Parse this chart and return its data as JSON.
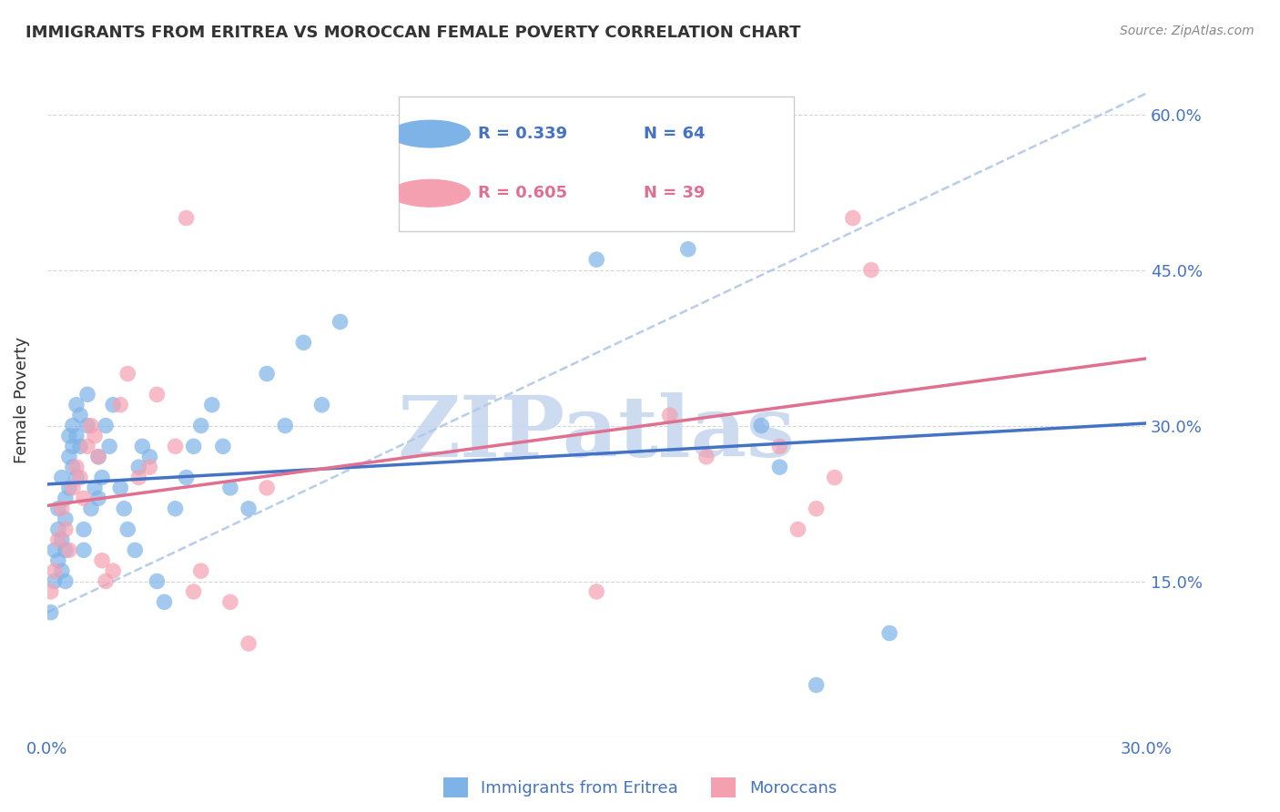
{
  "title": "IMMIGRANTS FROM ERITREA VS MOROCCAN FEMALE POVERTY CORRELATION CHART",
  "source": "Source: ZipAtlas.com",
  "xlim": [
    0.0,
    0.3
  ],
  "ylim": [
    0.0,
    0.65
  ],
  "legend_label1": "Immigrants from Eritrea",
  "legend_label2": "Moroccans",
  "R1": 0.339,
  "N1": 64,
  "R2": 0.605,
  "N2": 39,
  "color_blue": "#7EB3E8",
  "color_pink": "#F4A0B0",
  "color_blue_line": "#4472C4",
  "color_pink_line": "#E07090",
  "color_dashed": "#B0C8E8",
  "watermark": "ZIPatlas",
  "watermark_color": "#C8D8F0",
  "blue_points_x": [
    0.001,
    0.002,
    0.002,
    0.003,
    0.003,
    0.003,
    0.004,
    0.004,
    0.004,
    0.005,
    0.005,
    0.005,
    0.005,
    0.006,
    0.006,
    0.006,
    0.007,
    0.007,
    0.007,
    0.008,
    0.008,
    0.008,
    0.009,
    0.009,
    0.01,
    0.01,
    0.011,
    0.011,
    0.012,
    0.013,
    0.014,
    0.014,
    0.015,
    0.016,
    0.017,
    0.018,
    0.02,
    0.021,
    0.022,
    0.024,
    0.025,
    0.026,
    0.028,
    0.03,
    0.032,
    0.035,
    0.038,
    0.04,
    0.042,
    0.045,
    0.048,
    0.05,
    0.055,
    0.06,
    0.065,
    0.07,
    0.075,
    0.08,
    0.15,
    0.175,
    0.195,
    0.2,
    0.21,
    0.23
  ],
  "blue_points_y": [
    0.12,
    0.15,
    0.18,
    0.2,
    0.22,
    0.17,
    0.25,
    0.19,
    0.16,
    0.23,
    0.21,
    0.18,
    0.15,
    0.29,
    0.27,
    0.24,
    0.3,
    0.28,
    0.26,
    0.32,
    0.29,
    0.25,
    0.31,
    0.28,
    0.2,
    0.18,
    0.33,
    0.3,
    0.22,
    0.24,
    0.27,
    0.23,
    0.25,
    0.3,
    0.28,
    0.32,
    0.24,
    0.22,
    0.2,
    0.18,
    0.26,
    0.28,
    0.27,
    0.15,
    0.13,
    0.22,
    0.25,
    0.28,
    0.3,
    0.32,
    0.28,
    0.24,
    0.22,
    0.35,
    0.3,
    0.38,
    0.32,
    0.4,
    0.46,
    0.47,
    0.3,
    0.26,
    0.05,
    0.1
  ],
  "pink_points_x": [
    0.001,
    0.002,
    0.003,
    0.004,
    0.005,
    0.006,
    0.007,
    0.008,
    0.009,
    0.01,
    0.011,
    0.012,
    0.013,
    0.014,
    0.015,
    0.016,
    0.018,
    0.02,
    0.022,
    0.025,
    0.028,
    0.03,
    0.035,
    0.038,
    0.04,
    0.042,
    0.05,
    0.055,
    0.06,
    0.15,
    0.16,
    0.17,
    0.18,
    0.2,
    0.205,
    0.21,
    0.215,
    0.22,
    0.225
  ],
  "pink_points_y": [
    0.14,
    0.16,
    0.19,
    0.22,
    0.2,
    0.18,
    0.24,
    0.26,
    0.25,
    0.23,
    0.28,
    0.3,
    0.29,
    0.27,
    0.17,
    0.15,
    0.16,
    0.32,
    0.35,
    0.25,
    0.26,
    0.33,
    0.28,
    0.5,
    0.14,
    0.16,
    0.13,
    0.09,
    0.24,
    0.14,
    0.53,
    0.31,
    0.27,
    0.28,
    0.2,
    0.22,
    0.25,
    0.5,
    0.45
  ]
}
